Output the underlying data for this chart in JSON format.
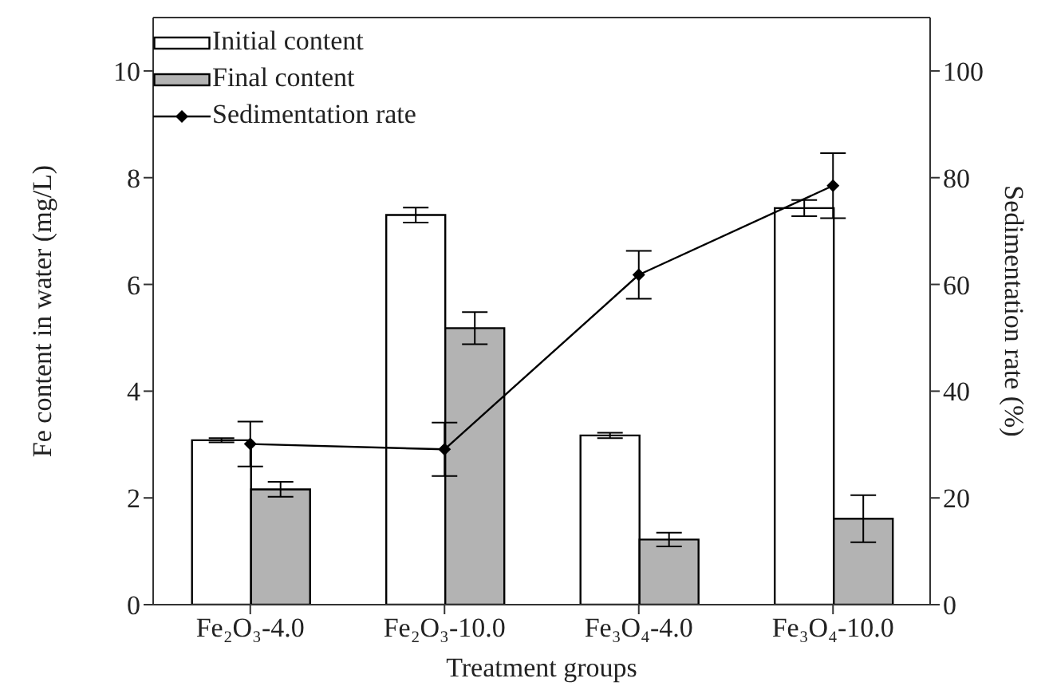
{
  "chart_data": {
    "type": "bar",
    "xlabel": "Treatment groups",
    "ylabel": "Fe content in water (mg/L)",
    "y2label": "Sedimentation rate (%)",
    "categories": [
      "Fe₂O₃-4.0",
      "Fe₂O₃-10.0",
      "Fe₃O₄-4.0",
      "Fe₃O₄-10.0"
    ],
    "series": [
      {
        "name": "Initial content",
        "color": "#ffffff",
        "values": [
          3.08,
          7.3,
          3.17,
          7.43
        ],
        "errors": [
          0.04,
          0.14,
          0.05,
          0.15
        ]
      },
      {
        "name": "Final content",
        "color": "#b3b3b3",
        "values": [
          2.16,
          5.18,
          1.22,
          1.61
        ],
        "errors": [
          0.14,
          0.3,
          0.13,
          0.44
        ]
      },
      {
        "name": "Sedimentation rate",
        "type": "line",
        "axis": "y2",
        "color": "#000000",
        "marker": "diamond",
        "values": [
          30.1,
          29.1,
          61.8,
          78.5
        ],
        "errors": [
          4.2,
          5,
          4.5,
          6.1
        ]
      }
    ],
    "ylim": [
      0,
      11
    ],
    "yticks": [
      0,
      2,
      4,
      6,
      8,
      10
    ],
    "y2lim": [
      0,
      110
    ],
    "y2ticks": [
      0,
      20,
      40,
      60,
      80,
      100
    ],
    "grid": false,
    "legend": "top left"
  }
}
